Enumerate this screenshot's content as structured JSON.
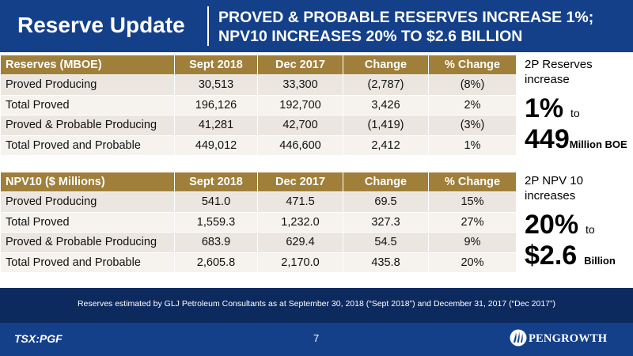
{
  "header": {
    "title": "Reserve Update",
    "subtitle_line1": "PROVED & PROBABLE RESERVES INCREASE 1%;",
    "subtitle_line2": "NPV10 INCREASES 20% TO $2.6 BILLION"
  },
  "reserves_table": {
    "headers": [
      "Reserves (MBOE)",
      "Sept 2018",
      "Dec 2017",
      "Change",
      "% Change"
    ],
    "rows": [
      [
        "Proved Producing",
        "30,513",
        "33,300",
        "(2,787)",
        "(8%)"
      ],
      [
        "Total Proved",
        "196,126",
        "192,700",
        "3,426",
        "2%"
      ],
      [
        "Proved & Probable Producing",
        "41,281",
        "42,700",
        "(1,419)",
        "(3%)"
      ],
      [
        "Total Proved and Probable",
        "449,012",
        "446,600",
        "2,412",
        "1%"
      ]
    ]
  },
  "npv_table": {
    "headers": [
      "NPV10 ($ Millions)",
      "Sept 2018",
      "Dec 2017",
      "Change",
      "% Change"
    ],
    "rows": [
      [
        "Proved Producing",
        "541.0",
        "471.5",
        "69.5",
        "15%"
      ],
      [
        "Total Proved",
        "1,559.3",
        "1,232.0",
        "327.3",
        "27%"
      ],
      [
        "Proved & Probable Producing",
        "683.9",
        "629.4",
        "54.5",
        "9%"
      ],
      [
        "Total Proved and Probable",
        "2,605.8",
        "2,170.0",
        "435.8",
        "20%"
      ]
    ]
  },
  "side_reserves": {
    "caption_line1": "2P Reserves",
    "caption_line2": "increase",
    "pct": "1%",
    "to": "to",
    "value": "449",
    "unit": "Million BOE"
  },
  "side_npv": {
    "caption_line1": "2P NPV 10",
    "caption_line2": "increases",
    "pct": "20%",
    "to": "to",
    "value": "$2.6",
    "unit": "Billion"
  },
  "footnote": "Reserves estimated by GLJ Petroleum Consultants as at September 30, 2018 (“Sept 2018”) and December 31, 2017 (“Dec 2017”)",
  "footer": {
    "ticker": "TSX:PGF",
    "page_number": "7",
    "logo_text": "PENGROWTH"
  },
  "colors": {
    "header_blue": "#14408a",
    "band_navy": "#0d2a5f",
    "table_header_gold": "#9f7f3a"
  }
}
